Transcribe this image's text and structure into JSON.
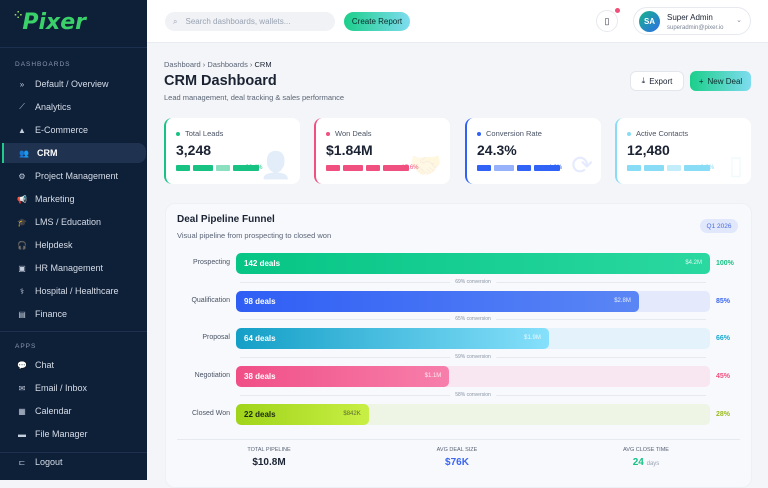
{
  "sidebar": {
    "logo": "Pixer",
    "sections": [
      "DASHBOARDS",
      "APPS"
    ],
    "dashboards": [
      {
        "label": "Default / Overview",
        "icon": "»"
      },
      {
        "label": "Analytics",
        "icon": "⟋"
      },
      {
        "label": "E-Commerce",
        "icon": "▲"
      },
      {
        "label": "CRM",
        "icon": "👥",
        "active": true
      },
      {
        "label": "Project Management",
        "icon": "⚙"
      },
      {
        "label": "Marketing",
        "icon": "📢"
      },
      {
        "label": "LMS / Education",
        "icon": "🎓"
      },
      {
        "label": "Helpdesk",
        "icon": "🎧"
      },
      {
        "label": "HR Management",
        "icon": "▣"
      },
      {
        "label": "Hospital / Healthcare",
        "icon": "⚕"
      },
      {
        "label": "Finance",
        "icon": "▤"
      }
    ],
    "apps": [
      {
        "label": "Chat",
        "icon": "💬"
      },
      {
        "label": "Email / Inbox",
        "icon": "✉"
      },
      {
        "label": "Calendar",
        "icon": "▦"
      },
      {
        "label": "File Manager",
        "icon": "▬"
      }
    ],
    "logout": "Logout"
  },
  "header": {
    "search_placeholder": "Search dashboards, wallets...",
    "create_report": "Create Report",
    "user_name": "Super Admin",
    "user_email": "superadmin@pixer.io",
    "avatar": "SA"
  },
  "page": {
    "breadcrumb": [
      "Dashboard",
      "Dashboards",
      "CRM"
    ],
    "title": "CRM Dashboard",
    "subtitle": "Lead management, deal tracking & sales performance",
    "export": "Export",
    "new_deal": "New Deal"
  },
  "kpis": [
    {
      "label": "Total Leads",
      "value": "3,248",
      "change": "+22.4%",
      "color": "#17c283"
    },
    {
      "label": "Won Deals",
      "value": "$1.84M",
      "change": "+15.6%",
      "color": "#f0507f"
    },
    {
      "label": "Conversion Rate",
      "value": "24.3%",
      "change": "+4.2%",
      "color": "#3063f5"
    },
    {
      "label": "Active Contacts",
      "value": "12,480",
      "change": "+8.9%",
      "color": "#88dcf5"
    }
  ],
  "pipeline": {
    "title": "Deal Pipeline Funnel",
    "subtitle": "Visual pipeline from prospecting to closed won",
    "period": "Q1 2026",
    "stages": [
      {
        "stage": "Prospecting",
        "deals": "142 deals",
        "amount": "$4.2M",
        "percent": 100,
        "percent_label": "100%"
      },
      {
        "stage": "Qualification",
        "deals": "98 deals",
        "amount": "$2.8M",
        "percent": 85,
        "percent_label": "85%"
      },
      {
        "stage": "Proposal",
        "deals": "64 deals",
        "amount": "$1.9M",
        "percent": 66,
        "percent_label": "66%"
      },
      {
        "stage": "Negotiation",
        "deals": "38 deals",
        "amount": "$1.1M",
        "percent": 45,
        "percent_label": "45%"
      },
      {
        "stage": "Closed Won",
        "deals": "22 deals",
        "amount": "$842K",
        "percent": 28,
        "percent_label": "28%"
      }
    ],
    "conversions": [
      "69% conversion",
      "65% conversion",
      "59% conversion",
      "58% conversion"
    ],
    "stats": [
      {
        "label": "TOTAL PIPELINE",
        "value": "$10.8M"
      },
      {
        "label": "AVG DEAL SIZE",
        "value": "$76K"
      },
      {
        "label": "AVG CLOSE TIME",
        "value": "24",
        "unit": "days"
      }
    ]
  }
}
